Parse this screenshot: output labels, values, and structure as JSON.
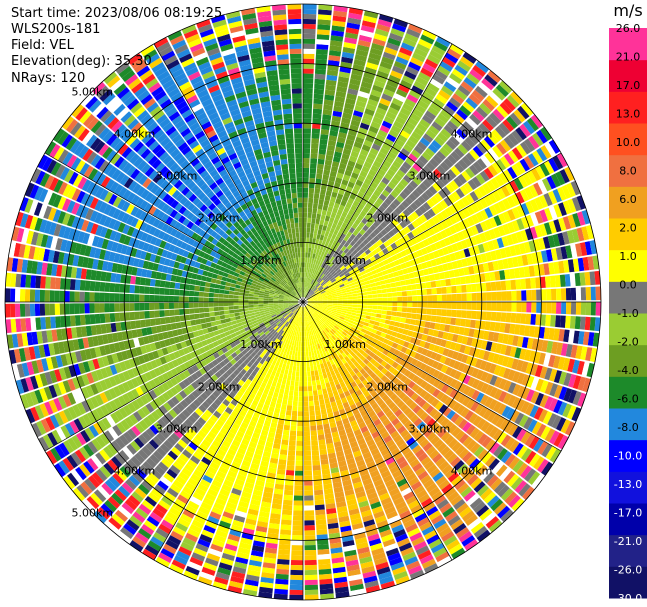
{
  "header": {
    "start_time": "Start time: 2023/08/06 08:19:25",
    "station": "WLS200s-181",
    "field": "Field: VEL",
    "elevation": "Elevation(deg): 35.30",
    "nrays": "NRays: 120"
  },
  "colorbar": {
    "unit": "m/s",
    "colors": [
      "#111166",
      "#222288",
      "#0000aa",
      "#1111dd",
      "#0000ff",
      "#2288dd",
      "#1d8a2a",
      "#6d9e22",
      "#9acc33",
      "#777777",
      "#ffff00",
      "#ffcc00",
      "#f0a020",
      "#f07040",
      "#ff5020",
      "#ff2020",
      "#ee0033",
      "#ff3399"
    ],
    "tick_labels": [
      "-30.0",
      "-26.0",
      "-21.0",
      "-17.0",
      "-13.0",
      "-10.0",
      "-8.0",
      "-6.0",
      "-4.0",
      "-2.0",
      "-1.0",
      "0.0",
      "1.0",
      "2.0",
      "6.0",
      "8.0",
      "10.0",
      "13.0",
      "17.0",
      "21.0",
      "26.0"
    ],
    "label_colors": [
      "#ffffff",
      "#ffffff",
      "#ffffff",
      "#ffffff",
      "#ffffff",
      "#ffffff",
      "#000000",
      "#000000",
      "#000000",
      "#000000",
      "#000000",
      "#000000",
      "#000000",
      "#000000",
      "#000000",
      "#000000",
      "#000000",
      "#000000",
      "#000000",
      "#000000",
      "#000000"
    ]
  },
  "chart_data": {
    "type": "heatmap",
    "title": "",
    "field": "VEL",
    "units": "m/s",
    "nrays": 120,
    "max_range_km": 5.0,
    "range_rings_km": [
      1,
      2,
      3,
      4,
      5
    ],
    "range_labels": [
      {
        "azimuth_deg": 315,
        "text": "1.00km"
      },
      {
        "azimuth_deg": 315,
        "text": "2.00km"
      },
      {
        "azimuth_deg": 315,
        "text": "3.00km"
      },
      {
        "azimuth_deg": 315,
        "text": "4.00km"
      },
      {
        "azimuth_deg": 315,
        "text": "5.00km"
      },
      {
        "azimuth_deg": 45,
        "text": "1.00km"
      },
      {
        "azimuth_deg": 45,
        "text": "2.00km"
      },
      {
        "azimuth_deg": 45,
        "text": "3.00km"
      },
      {
        "azimuth_deg": 45,
        "text": "4.00km"
      },
      {
        "azimuth_deg": 135,
        "text": "1.00km"
      },
      {
        "azimuth_deg": 135,
        "text": "2.00km"
      },
      {
        "azimuth_deg": 135,
        "text": "3.00km"
      },
      {
        "azimuth_deg": 135,
        "text": "4.00km"
      },
      {
        "azimuth_deg": 225,
        "text": "1.00km"
      },
      {
        "azimuth_deg": 225,
        "text": "2.00km"
      },
      {
        "azimuth_deg": 225,
        "text": "3.00km"
      },
      {
        "azimuth_deg": 225,
        "text": "4.00km"
      },
      {
        "azimuth_deg": 225,
        "text": "5.00km"
      }
    ],
    "value_range": [
      -30,
      26
    ],
    "velocity_pattern": [
      {
        "azimuth_deg": 0,
        "description_value": -2.0,
        "sector": "north near"
      },
      {
        "azimuth_deg": 330,
        "value": -8.0
      },
      {
        "azimuth_deg": 270,
        "value": -4.0
      },
      {
        "azimuth_deg": 90,
        "value": 2.0
      },
      {
        "azimuth_deg": 150,
        "value": 8.0
      },
      {
        "azimuth_deg": 200,
        "value": 6.0
      }
    ]
  }
}
